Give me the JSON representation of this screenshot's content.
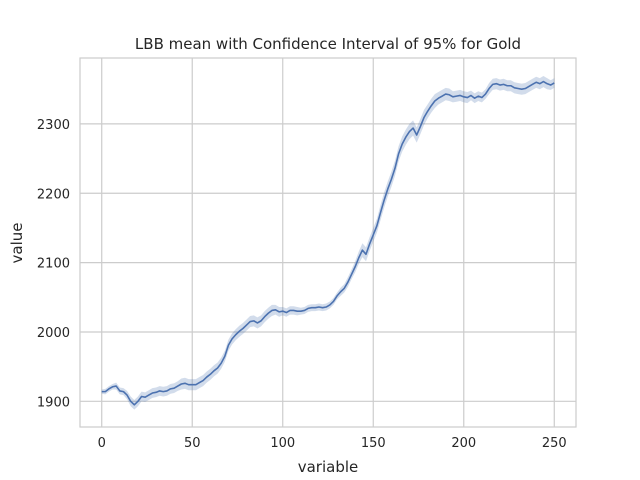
{
  "chart_data": {
    "type": "line",
    "title": "LBB mean with Confidence Interval of 95% for Gold",
    "xlabel": "variable",
    "ylabel": "value",
    "xlim": [
      -12,
      262
    ],
    "ylim": [
      1863,
      2395
    ],
    "x_ticks": [
      0,
      50,
      100,
      150,
      200,
      250
    ],
    "y_ticks": [
      1900,
      2000,
      2100,
      2200,
      2300
    ],
    "grid": true,
    "line_color": "#4c72b0",
    "band_color": "#4c72b0",
    "series": [
      {
        "x": [
          0,
          2,
          4,
          6,
          8,
          10,
          12,
          14,
          16,
          18,
          20,
          22,
          24,
          26,
          28,
          30,
          32,
          34,
          36,
          38,
          40,
          42,
          44,
          46,
          48,
          50,
          52,
          54,
          56,
          58,
          60,
          62,
          64,
          66,
          68,
          70,
          72,
          74,
          76,
          78,
          80,
          82,
          84,
          86,
          88,
          90,
          92,
          94,
          96,
          98,
          100,
          102,
          104,
          106,
          108,
          110,
          112,
          114,
          116,
          118,
          120,
          122,
          124,
          126,
          128,
          130,
          132,
          134,
          136,
          138,
          140,
          142,
          144,
          146,
          148,
          150,
          152,
          154,
          156,
          158,
          160,
          162,
          164,
          166,
          168,
          170,
          172,
          174,
          176,
          178,
          180,
          182,
          184,
          186,
          188,
          190,
          192,
          194,
          196,
          198,
          200,
          202,
          204,
          206,
          208,
          210,
          212,
          214,
          216,
          218,
          220,
          222,
          224,
          226,
          228,
          230,
          232,
          234,
          236,
          238,
          240,
          242,
          244,
          246,
          248,
          250
        ],
        "y": [
          1914,
          1914,
          1918,
          1921,
          1922,
          1915,
          1914,
          1909,
          1900,
          1895,
          1900,
          1907,
          1906,
          1909,
          1912,
          1913,
          1915,
          1914,
          1915,
          1918,
          1919,
          1922,
          1925,
          1926,
          1924,
          1924,
          1924,
          1927,
          1930,
          1935,
          1939,
          1944,
          1948,
          1955,
          1965,
          1981,
          1990,
          1996,
          2001,
          2005,
          2010,
          2015,
          2016,
          2013,
          2016,
          2022,
          2027,
          2031,
          2032,
          2029,
          2030,
          2028,
          2031,
          2031,
          2030,
          2030,
          2031,
          2034,
          2035,
          2035,
          2036,
          2035,
          2036,
          2039,
          2044,
          2052,
          2058,
          2063,
          2072,
          2083,
          2094,
          2107,
          2118,
          2112,
          2127,
          2140,
          2153,
          2172,
          2190,
          2206,
          2220,
          2236,
          2257,
          2271,
          2281,
          2289,
          2294,
          2284,
          2296,
          2309,
          2318,
          2326,
          2333,
          2337,
          2340,
          2343,
          2342,
          2339,
          2340,
          2341,
          2339,
          2338,
          2341,
          2337,
          2340,
          2338,
          2343,
          2351,
          2357,
          2358,
          2356,
          2357,
          2355,
          2355,
          2352,
          2351,
          2350,
          2351,
          2354,
          2357,
          2360,
          2358,
          2361,
          2358,
          2356,
          2359
        ],
        "ci_halfwidth": [
          3,
          4,
          4,
          4,
          5,
          5,
          5,
          6,
          7,
          7,
          7,
          7,
          7,
          7,
          7,
          7,
          7,
          7,
          7,
          7,
          7,
          7,
          8,
          8,
          8,
          8,
          8,
          8,
          8,
          8,
          8,
          8,
          8,
          8,
          8,
          8,
          8,
          8,
          8,
          8,
          8,
          8,
          8,
          8,
          8,
          8,
          8,
          8,
          7,
          7,
          6,
          6,
          6,
          6,
          6,
          5,
          5,
          5,
          5,
          5,
          5,
          5,
          5,
          5,
          5,
          5,
          6,
          6,
          7,
          7,
          8,
          9,
          10,
          10,
          10,
          10,
          10,
          11,
          11,
          11,
          11,
          11,
          11,
          11,
          11,
          11,
          11,
          11,
          11,
          11,
          10,
          10,
          10,
          9,
          9,
          9,
          9,
          8,
          8,
          8,
          8,
          8,
          7,
          7,
          7,
          7,
          7,
          8,
          8,
          8,
          8,
          8,
          8,
          8,
          8,
          8,
          8,
          8,
          8,
          8,
          8,
          8,
          8,
          8,
          7,
          7
        ]
      }
    ]
  }
}
